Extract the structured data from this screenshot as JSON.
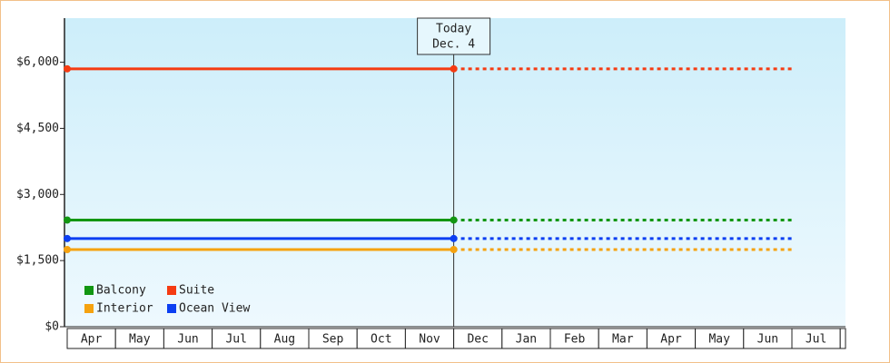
{
  "chart_data": {
    "type": "line",
    "categories": [
      "Apr",
      "May",
      "Jun",
      "Jul",
      "Aug",
      "Sep",
      "Oct",
      "Nov",
      "Dec",
      "Jan",
      "Feb",
      "Mar",
      "Apr",
      "May",
      "Jun",
      "Jul"
    ],
    "series": [
      {
        "name": "Balcony",
        "color": "#129612",
        "values": [
          2420,
          2420,
          2420,
          2420,
          2420,
          2420,
          2420,
          2420,
          2420,
          null,
          null,
          null,
          null,
          null,
          null,
          null
        ],
        "forecast": [
          null,
          null,
          null,
          null,
          null,
          null,
          null,
          null,
          2420,
          2420,
          2420,
          2420,
          2420,
          2420,
          2420,
          2420
        ]
      },
      {
        "name": "Suite",
        "color": "#f53b12",
        "values": [
          5850,
          5850,
          5850,
          5850,
          5850,
          5850,
          5850,
          5850,
          5850,
          null,
          null,
          null,
          null,
          null,
          null,
          null
        ],
        "forecast": [
          null,
          null,
          null,
          null,
          null,
          null,
          null,
          null,
          5850,
          5850,
          5850,
          5850,
          5850,
          5850,
          5850,
          5850
        ]
      },
      {
        "name": "Interior",
        "color": "#f5a20f",
        "values": [
          1750,
          1750,
          1750,
          1750,
          1750,
          1750,
          1750,
          1750,
          1750,
          null,
          null,
          null,
          null,
          null,
          null,
          null
        ],
        "forecast": [
          null,
          null,
          null,
          null,
          null,
          null,
          null,
          null,
          1750,
          1750,
          1750,
          1750,
          1750,
          1750,
          1750,
          1750
        ]
      },
      {
        "name": "Ocean View",
        "color": "#0b3ff2",
        "values": [
          2000,
          2000,
          2000,
          2000,
          2000,
          2000,
          2000,
          2000,
          2000,
          null,
          null,
          null,
          null,
          null,
          null,
          null
        ],
        "forecast": [
          null,
          null,
          null,
          null,
          null,
          null,
          null,
          null,
          2000,
          2000,
          2000,
          2000,
          2000,
          2000,
          2000,
          2000
        ]
      }
    ],
    "annotation": [
      "Today",
      "Dec. 4"
    ],
    "ylim": [
      0,
      7000
    ],
    "yticks": [
      {
        "value": 0,
        "label": "$0"
      },
      {
        "value": 1500,
        "label": "$1,500"
      },
      {
        "value": 3000,
        "label": "$3,000"
      },
      {
        "value": 4500,
        "label": "$4,500"
      },
      {
        "value": 6000,
        "label": "$6,000"
      }
    ],
    "legend": "lower left",
    "grid": false
  }
}
